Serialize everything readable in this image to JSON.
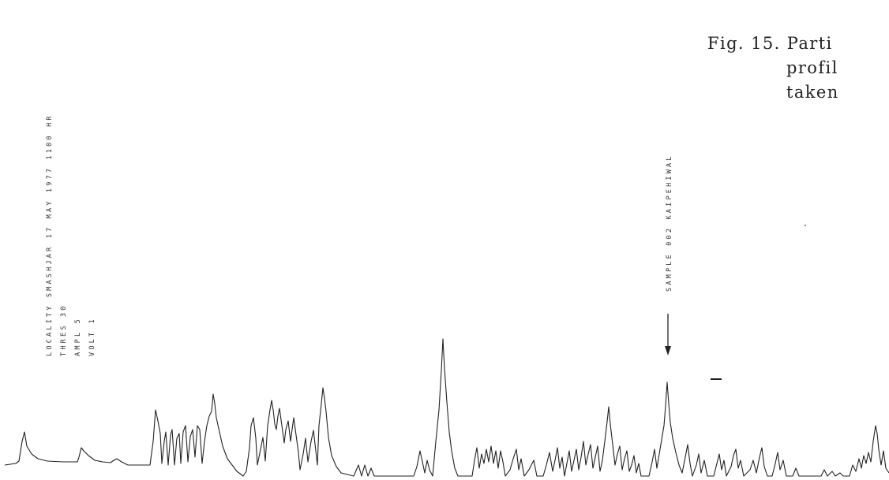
{
  "chart_header": {
    "locality_line": "LOCALITY  SMASHJAR  17 MAY 1977  1100  HR",
    "thres_line": "THRES  30",
    "ampl_line": "AMPL  5",
    "volt_line": "VOLT  1"
  },
  "sample_marker": {
    "label": "SAMPLE  002  KAIPEHIWAL"
  },
  "caption": {
    "line1": "Fig. 15.  Parti",
    "line2": "profil",
    "line3": "taken"
  },
  "colors": {
    "ink": "#222222",
    "paper": "#ffffff"
  }
}
